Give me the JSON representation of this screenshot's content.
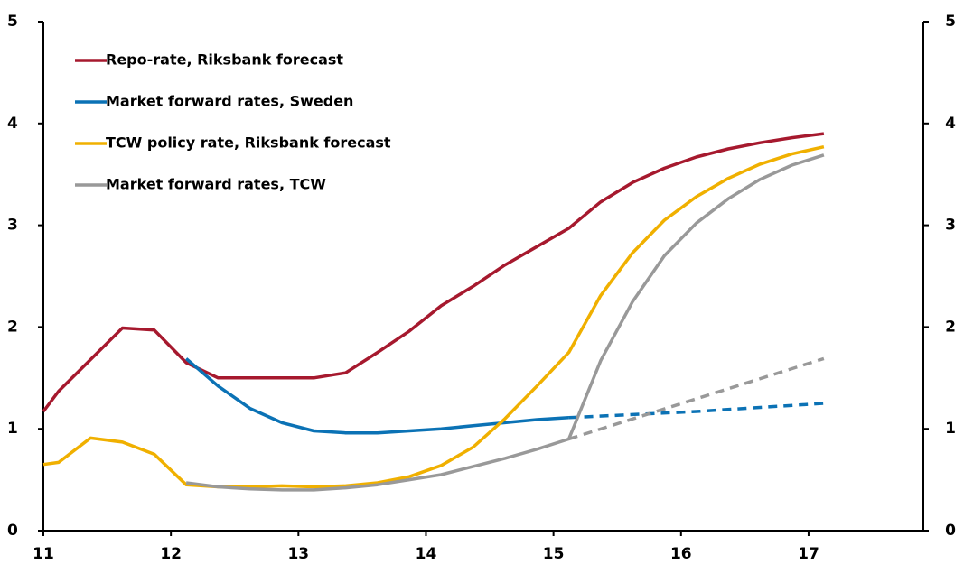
{
  "chart_data": {
    "type": "line",
    "xlim": [
      11,
      17.9
    ],
    "xticks": [
      11,
      12,
      13,
      14,
      15,
      16,
      17
    ],
    "ylim": [
      0,
      5
    ],
    "yticks": [
      0,
      1,
      2,
      3,
      4,
      5
    ],
    "y2lim": [
      0,
      5
    ],
    "y2ticks": [
      0,
      1,
      2,
      3,
      4,
      5
    ],
    "legend": "upper left",
    "series": [
      {
        "name": "Repo-rate, Riksbank forecast",
        "color": "#a6192e",
        "x": [
          11.0,
          11.12,
          11.37,
          11.62,
          11.87,
          12.12,
          12.37,
          12.62,
          12.87,
          13.12,
          13.37,
          13.62,
          13.87,
          14.12,
          14.37,
          14.62,
          14.87,
          15.12,
          15.37,
          15.62,
          15.87,
          16.12,
          16.37,
          16.62,
          16.87,
          17.12
        ],
        "values": [
          1.17,
          1.37,
          1.68,
          1.99,
          1.97,
          1.65,
          1.5,
          1.5,
          1.5,
          1.5,
          1.55,
          1.75,
          1.96,
          2.21,
          2.4,
          2.61,
          2.79,
          2.97,
          3.23,
          3.42,
          3.56,
          3.67,
          3.75,
          3.81,
          3.86,
          3.9
        ]
      },
      {
        "name": "Market forward rates, Sweden",
        "color": "#0b72b5",
        "x": [
          12.12,
          12.37,
          12.62,
          12.87,
          13.12,
          13.37,
          13.62,
          13.87,
          14.12,
          14.37,
          14.62,
          14.87,
          15.12
        ],
        "values": [
          1.69,
          1.42,
          1.2,
          1.06,
          0.98,
          0.96,
          0.96,
          0.98,
          1.0,
          1.03,
          1.06,
          1.09,
          1.11
        ],
        "dashed_x": [
          15.12,
          15.62,
          16.12,
          16.62,
          17.12
        ],
        "dashed_values": [
          1.11,
          1.14,
          1.17,
          1.21,
          1.25
        ]
      },
      {
        "name": "TCW policy rate, Riksbank forecast",
        "color": "#f0b000",
        "x": [
          11.0,
          11.12,
          11.37,
          11.62,
          11.87,
          12.12,
          12.37,
          12.62,
          12.87,
          13.12,
          13.37,
          13.62,
          13.87,
          14.12,
          14.37,
          14.62,
          14.87,
          15.12,
          15.37,
          15.62,
          15.87,
          16.12,
          16.37,
          16.62,
          16.87,
          17.12
        ],
        "values": [
          0.65,
          0.67,
          0.91,
          0.87,
          0.75,
          0.45,
          0.43,
          0.43,
          0.44,
          0.43,
          0.44,
          0.47,
          0.53,
          0.64,
          0.82,
          1.1,
          1.42,
          1.75,
          2.31,
          2.73,
          3.05,
          3.28,
          3.46,
          3.6,
          3.7,
          3.77
        ]
      },
      {
        "name": "Market forward rates, TCW",
        "color": "#999999",
        "x": [
          12.12,
          12.37,
          12.62,
          12.87,
          13.12,
          13.37,
          13.62,
          13.87,
          14.12,
          14.37,
          14.62,
          14.87,
          15.12,
          15.37,
          15.62,
          15.87,
          16.12,
          16.37,
          16.62,
          16.87,
          17.12
        ],
        "values": [
          0.47,
          0.43,
          0.41,
          0.4,
          0.4,
          0.42,
          0.45,
          0.5,
          0.55,
          0.63,
          0.71,
          0.8,
          0.9,
          1.67,
          2.25,
          2.7,
          3.02,
          3.26,
          3.45,
          3.59,
          3.69
        ],
        "dashed_x": [
          15.12,
          17.12
        ],
        "dashed_values": [
          0.9,
          1.69
        ]
      }
    ]
  }
}
